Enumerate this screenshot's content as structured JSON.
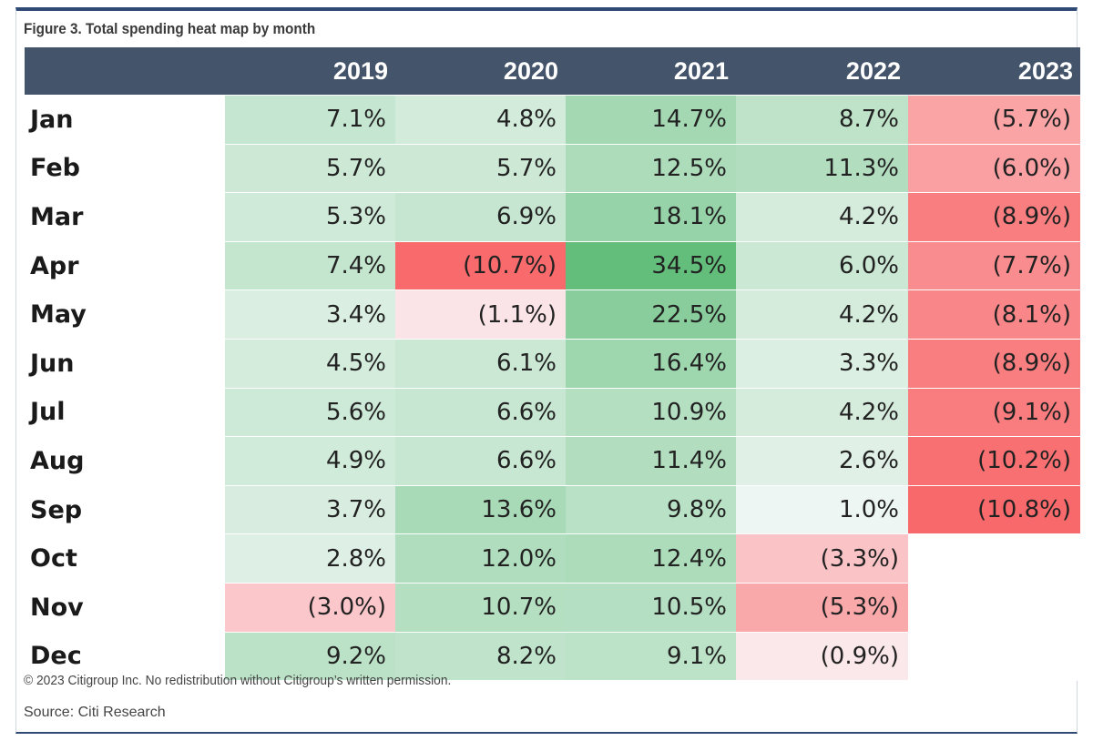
{
  "chart_data": {
    "type": "heatmap",
    "title": "Figure 3. Total spending heat map by month",
    "columns": [
      "2019",
      "2020",
      "2021",
      "2022",
      "2023"
    ],
    "rows": [
      {
        "label": "Jan",
        "cells": [
          "7.1%",
          "4.8%",
          "14.7%",
          "8.7%",
          "(5.7%)"
        ],
        "values": [
          7.1,
          4.8,
          14.7,
          8.7,
          -5.7
        ]
      },
      {
        "label": "Feb",
        "cells": [
          "5.7%",
          "5.7%",
          "12.5%",
          "11.3%",
          "(6.0%)"
        ],
        "values": [
          5.7,
          5.7,
          12.5,
          11.3,
          -6.0
        ]
      },
      {
        "label": "Mar",
        "cells": [
          "5.3%",
          "6.9%",
          "18.1%",
          "4.2%",
          "(8.9%)"
        ],
        "values": [
          5.3,
          6.9,
          18.1,
          4.2,
          -8.9
        ]
      },
      {
        "label": "Apr",
        "cells": [
          "7.4%",
          "(10.7%)",
          "34.5%",
          "6.0%",
          "(7.7%)"
        ],
        "values": [
          7.4,
          -10.7,
          34.5,
          6.0,
          -7.7
        ]
      },
      {
        "label": "May",
        "cells": [
          "3.4%",
          "(1.1%)",
          "22.5%",
          "4.2%",
          "(8.1%)"
        ],
        "values": [
          3.4,
          -1.1,
          22.5,
          4.2,
          -8.1
        ]
      },
      {
        "label": "Jun",
        "cells": [
          "4.5%",
          "6.1%",
          "16.4%",
          "3.3%",
          "(8.9%)"
        ],
        "values": [
          4.5,
          6.1,
          16.4,
          3.3,
          -8.9
        ]
      },
      {
        "label": "Jul",
        "cells": [
          "5.6%",
          "6.6%",
          "10.9%",
          "4.2%",
          "(9.1%)"
        ],
        "values": [
          5.6,
          6.6,
          10.9,
          4.2,
          -9.1
        ]
      },
      {
        "label": "Aug",
        "cells": [
          "4.9%",
          "6.6%",
          "11.4%",
          "2.6%",
          "(10.2%)"
        ],
        "values": [
          4.9,
          6.6,
          11.4,
          2.6,
          -10.2
        ]
      },
      {
        "label": "Sep",
        "cells": [
          "3.7%",
          "13.6%",
          "9.8%",
          "1.0%",
          "(10.8%)"
        ],
        "values": [
          3.7,
          13.6,
          9.8,
          1.0,
          -10.8
        ]
      },
      {
        "label": "Oct",
        "cells": [
          "2.8%",
          "12.0%",
          "12.4%",
          "(3.3%)",
          ""
        ],
        "values": [
          2.8,
          12.0,
          12.4,
          -3.3,
          null
        ]
      },
      {
        "label": "Nov",
        "cells": [
          "(3.0%)",
          "10.7%",
          "10.5%",
          "(5.3%)",
          ""
        ],
        "values": [
          -3.0,
          10.7,
          10.5,
          -5.3,
          null
        ]
      },
      {
        "label": "Dec",
        "cells": [
          "9.2%",
          "8.2%",
          "9.1%",
          "(0.9%)",
          ""
        ],
        "values": [
          9.2,
          8.2,
          9.1,
          -0.9,
          null
        ]
      }
    ],
    "color_scale": {
      "negative": "#f8696b",
      "neutral": "#fcfcff",
      "positive": "#63be7b"
    }
  },
  "footer": {
    "copyright": "© 2023 Citigroup Inc. No redistribution without Citigroup’s written permission.",
    "source": "Source: Citi Research"
  }
}
